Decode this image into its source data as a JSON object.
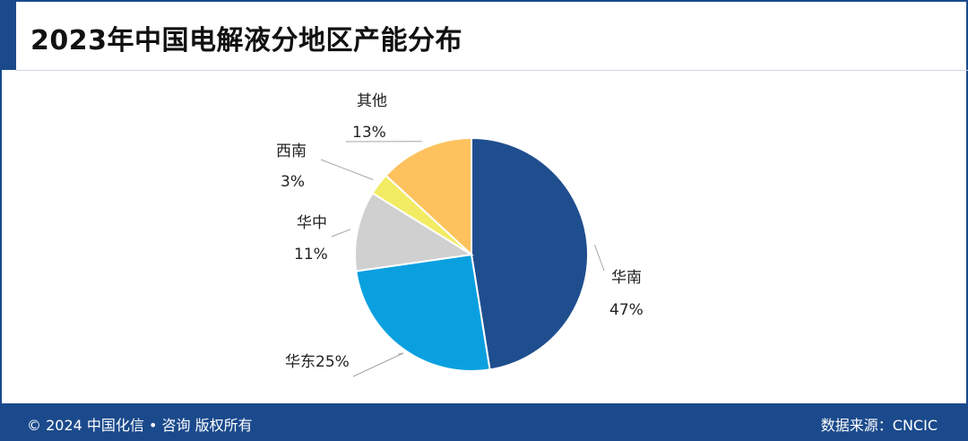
{
  "title": "2023年中国电解液分地区产能分布",
  "footer": {
    "copyright": "© 2024 中国化信 • 咨询  版权所有",
    "source": "数据来源：CNCIC"
  },
  "chart_data": {
    "type": "pie",
    "title": "2023年中国电解液分地区产能分布",
    "unit": "%",
    "slices": [
      {
        "label": "华南",
        "value": 47,
        "color": "#1f4e8f"
      },
      {
        "label": "华东",
        "value": 25,
        "color": "#0aa0e0"
      },
      {
        "label": "华中",
        "value": 11,
        "color": "#d0d0d0"
      },
      {
        "label": "西南",
        "value": 3,
        "color": "#f2ec64"
      },
      {
        "label": "其他",
        "value": 13,
        "color": "#fdc25e"
      }
    ],
    "label_texts": [
      {
        "name": "华南",
        "pct": "47%"
      },
      {
        "name": "华东",
        "pct": "25%",
        "combined": "华东25%"
      },
      {
        "name": "华中",
        "pct": "11%"
      },
      {
        "name": "西南",
        "pct": "3%"
      },
      {
        "name": "其他",
        "pct": "13%"
      }
    ]
  }
}
